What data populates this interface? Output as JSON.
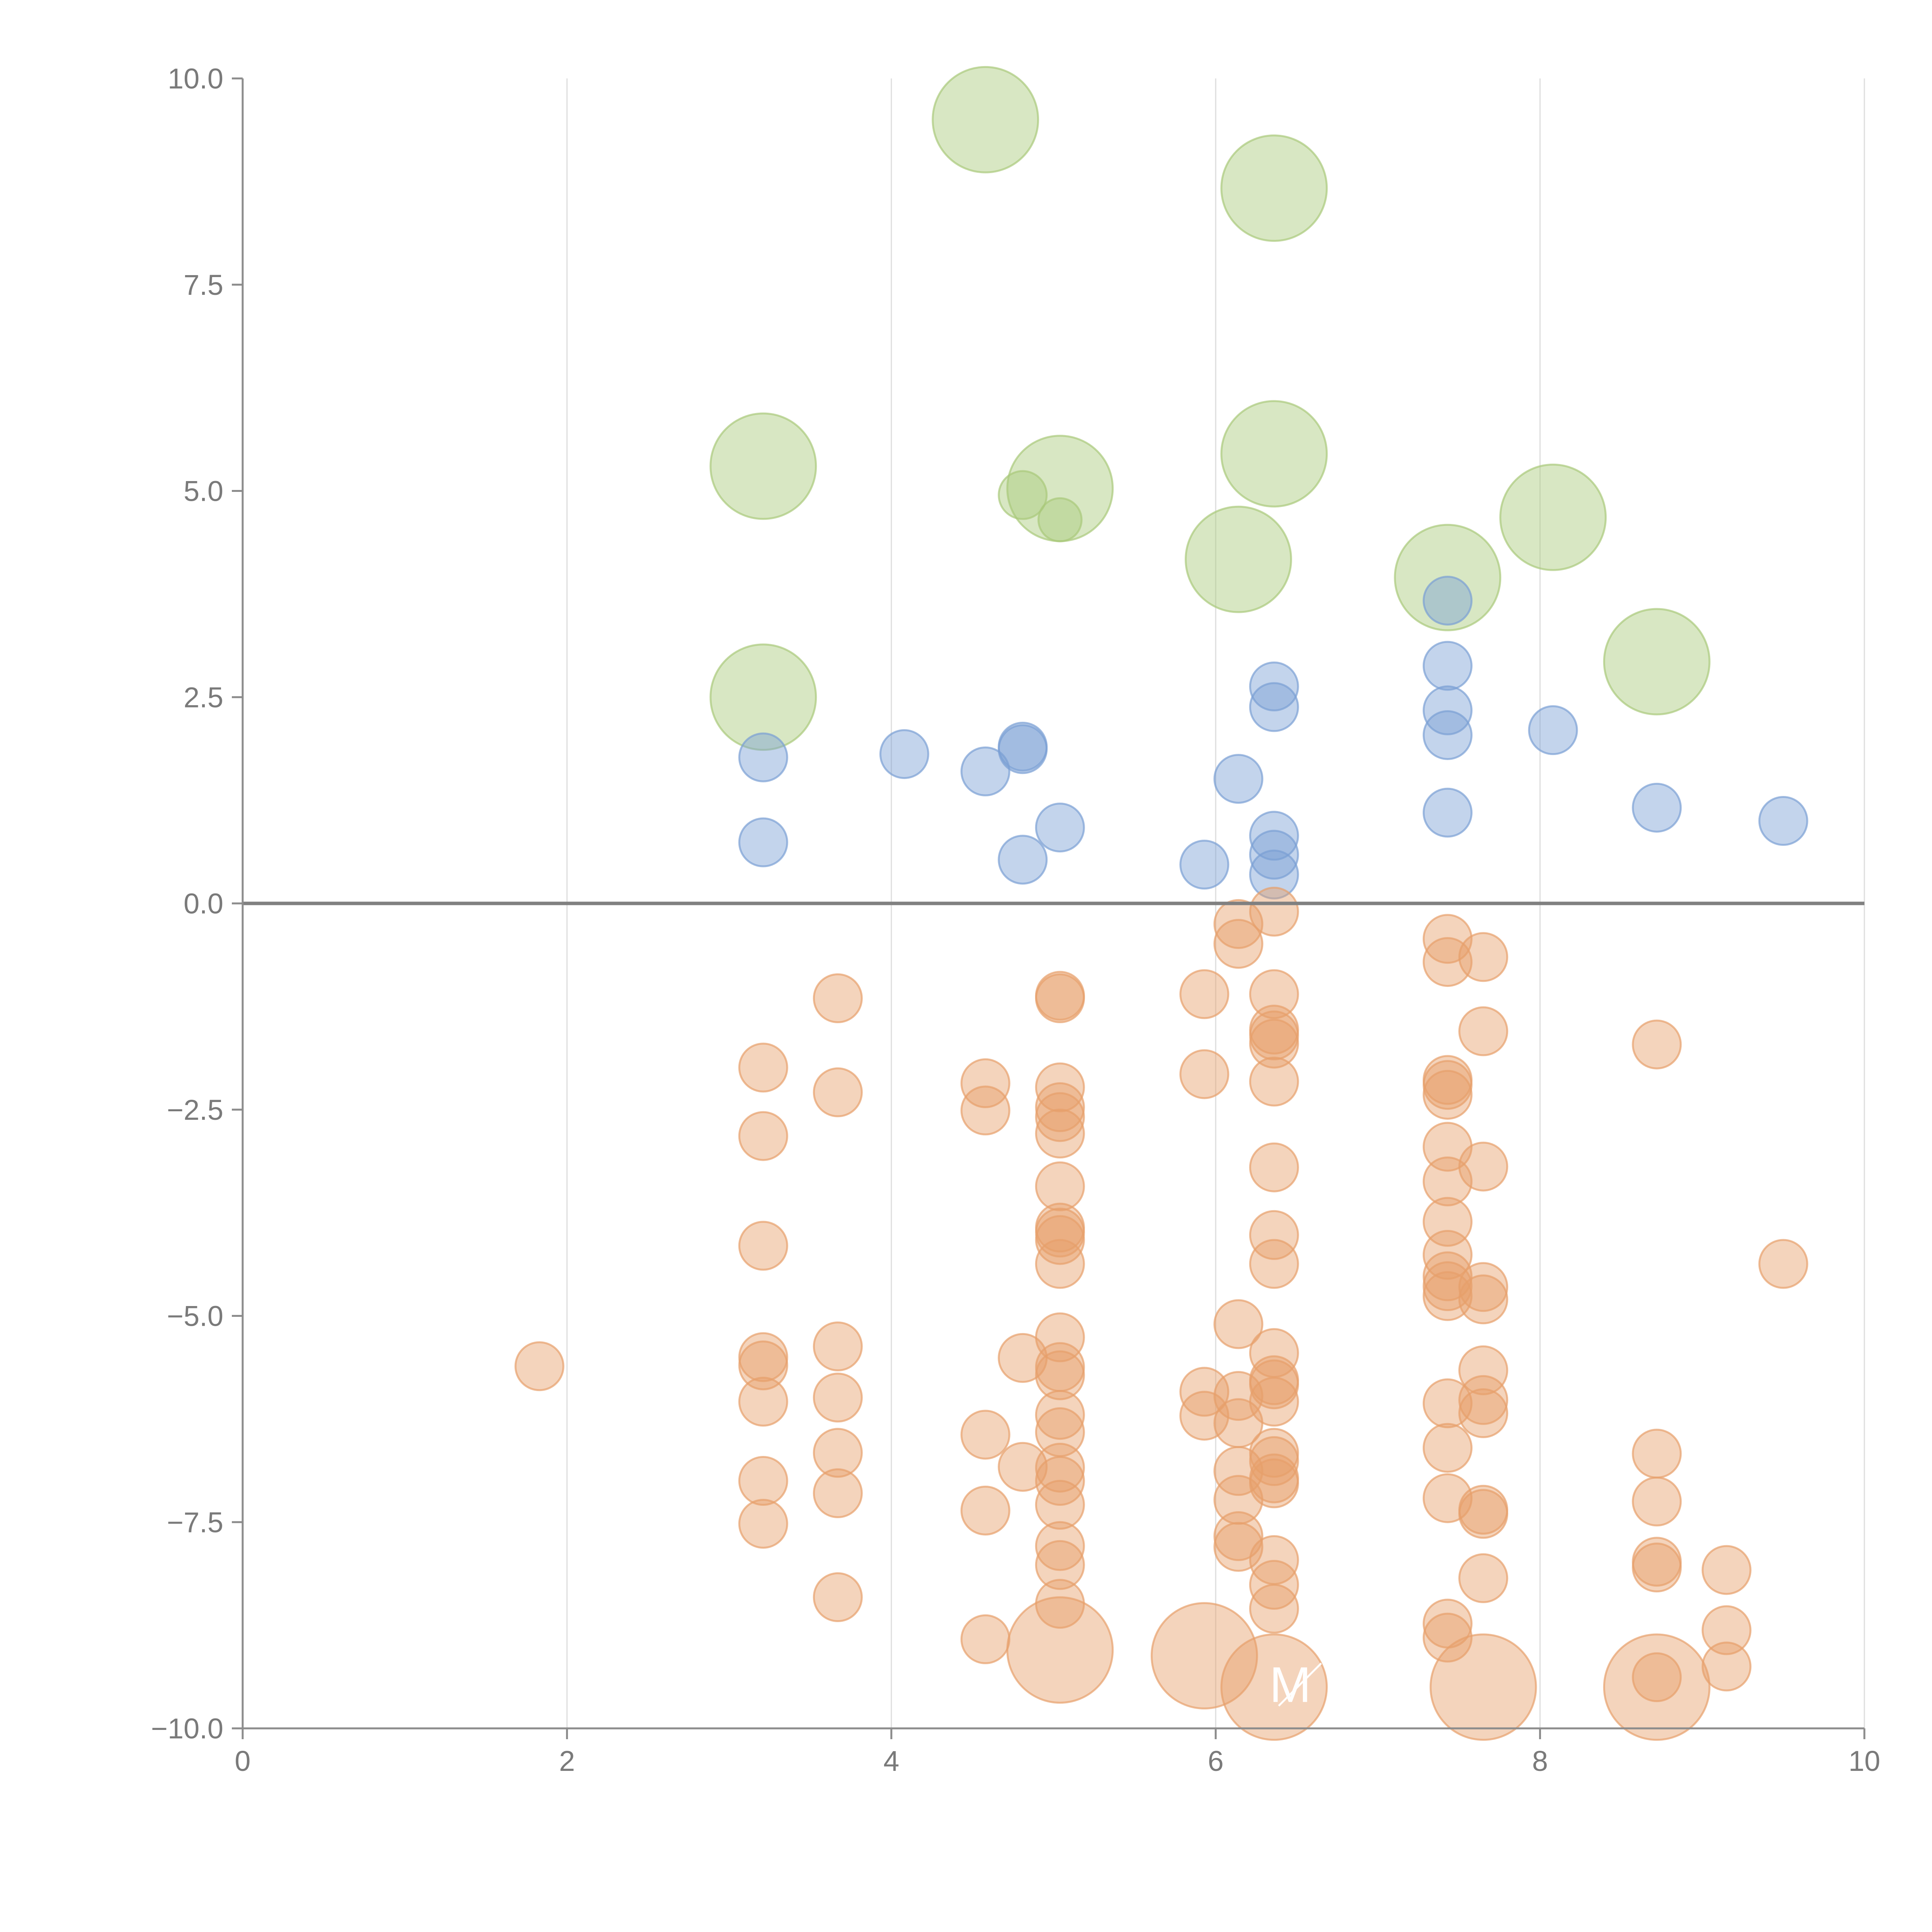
{
  "chart_data": {
    "type": "scatter",
    "title": "",
    "xlabel": "",
    "ylabel": "",
    "xlim": [
      0,
      10
    ],
    "ylim": [
      -10,
      10
    ],
    "grid": "vertical",
    "x_ticks": [
      "0",
      "2",
      "4",
      "6",
      "8",
      "10"
    ],
    "y_ticks": [
      "10.0",
      "7.5",
      "5.0",
      "2.5",
      "0.0",
      "−2.5",
      "−5.0",
      "−7.5",
      "−10.0"
    ],
    "x_tick_values": [
      0,
      2,
      4,
      6,
      8,
      10
    ],
    "y_tick_values": [
      10,
      7.5,
      5,
      2.5,
      0,
      -2.5,
      -5,
      -7.5,
      -10
    ],
    "reference_line_y": 0,
    "colors": {
      "green": "#a9c97a",
      "blue": "#7a9fd4",
      "orange": "#e7a06b"
    },
    "series": [
      {
        "color": "green",
        "points": [
          {
            "x": 4.58,
            "y": 9.5,
            "s": 2.2
          },
          {
            "x": 6.36,
            "y": 8.67,
            "s": 2.2
          },
          {
            "x": 3.21,
            "y": 5.3,
            "s": 2.2
          },
          {
            "x": 6.36,
            "y": 5.45,
            "s": 2.2
          },
          {
            "x": 5.04,
            "y": 5.03,
            "s": 2.2
          },
          {
            "x": 4.81,
            "y": 4.95,
            "s": 1.0
          },
          {
            "x": 5.04,
            "y": 4.65,
            "s": 0.9
          },
          {
            "x": 8.08,
            "y": 4.68,
            "s": 2.2
          },
          {
            "x": 6.14,
            "y": 4.17,
            "s": 2.2
          },
          {
            "x": 7.43,
            "y": 3.95,
            "s": 2.2
          },
          {
            "x": 8.72,
            "y": 2.93,
            "s": 2.2
          },
          {
            "x": 3.21,
            "y": 2.5,
            "s": 2.2
          }
        ]
      },
      {
        "color": "blue",
        "points": [
          {
            "x": 7.43,
            "y": 3.67
          },
          {
            "x": 7.43,
            "y": 2.88
          },
          {
            "x": 6.36,
            "y": 2.63
          },
          {
            "x": 6.36,
            "y": 2.38
          },
          {
            "x": 7.43,
            "y": 2.34
          },
          {
            "x": 8.08,
            "y": 2.1
          },
          {
            "x": 7.43,
            "y": 2.04
          },
          {
            "x": 4.81,
            "y": 1.9
          },
          {
            "x": 4.81,
            "y": 1.87
          },
          {
            "x": 4.08,
            "y": 1.81
          },
          {
            "x": 3.21,
            "y": 1.77
          },
          {
            "x": 4.58,
            "y": 1.6
          },
          {
            "x": 6.14,
            "y": 1.51
          },
          {
            "x": 8.72,
            "y": 1.16
          },
          {
            "x": 7.43,
            "y": 1.1
          },
          {
            "x": 9.5,
            "y": 1.0
          },
          {
            "x": 5.04,
            "y": 0.92
          },
          {
            "x": 6.36,
            "y": 0.82
          },
          {
            "x": 3.21,
            "y": 0.74
          },
          {
            "x": 6.36,
            "y": 0.59
          },
          {
            "x": 4.81,
            "y": 0.53
          },
          {
            "x": 5.93,
            "y": 0.47
          },
          {
            "x": 6.36,
            "y": 0.35
          }
        ]
      },
      {
        "color": "orange",
        "points": [
          {
            "x": 6.36,
            "y": -0.1
          },
          {
            "x": 6.14,
            "y": -0.25
          },
          {
            "x": 7.43,
            "y": -0.43
          },
          {
            "x": 6.14,
            "y": -0.49
          },
          {
            "x": 7.65,
            "y": -0.65
          },
          {
            "x": 7.43,
            "y": -0.71
          },
          {
            "x": 5.93,
            "y": -1.1
          },
          {
            "x": 6.36,
            "y": -1.1
          },
          {
            "x": 5.04,
            "y": -1.12
          },
          {
            "x": 5.04,
            "y": -1.15
          },
          {
            "x": 3.67,
            "y": -1.15
          },
          {
            "x": 6.36,
            "y": -1.53
          },
          {
            "x": 7.65,
            "y": -1.55
          },
          {
            "x": 6.36,
            "y": -1.6
          },
          {
            "x": 6.36,
            "y": -1.7
          },
          {
            "x": 8.72,
            "y": -1.71
          },
          {
            "x": 3.21,
            "y": -1.99
          },
          {
            "x": 5.93,
            "y": -2.07
          },
          {
            "x": 7.43,
            "y": -2.14
          },
          {
            "x": 6.36,
            "y": -2.16
          },
          {
            "x": 4.58,
            "y": -2.18
          },
          {
            "x": 7.43,
            "y": -2.2
          },
          {
            "x": 5.04,
            "y": -2.23
          },
          {
            "x": 3.67,
            "y": -2.29
          },
          {
            "x": 7.43,
            "y": -2.32
          },
          {
            "x": 5.04,
            "y": -2.47
          },
          {
            "x": 4.58,
            "y": -2.51
          },
          {
            "x": 5.04,
            "y": -2.59
          },
          {
            "x": 5.04,
            "y": -2.79
          },
          {
            "x": 3.21,
            "y": -2.82
          },
          {
            "x": 7.43,
            "y": -2.95
          },
          {
            "x": 6.36,
            "y": -3.2
          },
          {
            "x": 7.65,
            "y": -3.19
          },
          {
            "x": 7.43,
            "y": -3.37
          },
          {
            "x": 5.04,
            "y": -3.43
          },
          {
            "x": 7.43,
            "y": -3.86
          },
          {
            "x": 5.04,
            "y": -3.93
          },
          {
            "x": 5.04,
            "y": -3.99
          },
          {
            "x": 6.36,
            "y": -4.02
          },
          {
            "x": 5.04,
            "y": -4.08
          },
          {
            "x": 3.21,
            "y": -4.15
          },
          {
            "x": 7.43,
            "y": -4.26
          },
          {
            "x": 5.04,
            "y": -4.37
          },
          {
            "x": 6.36,
            "y": -4.37
          },
          {
            "x": 9.5,
            "y": -4.37
          },
          {
            "x": 7.43,
            "y": -4.52
          },
          {
            "x": 7.43,
            "y": -4.64
          },
          {
            "x": 7.65,
            "y": -4.65
          },
          {
            "x": 7.43,
            "y": -4.76
          },
          {
            "x": 7.65,
            "y": -4.8
          },
          {
            "x": 6.14,
            "y": -5.1
          },
          {
            "x": 5.04,
            "y": -5.26
          },
          {
            "x": 3.67,
            "y": -5.37
          },
          {
            "x": 6.36,
            "y": -5.45
          },
          {
            "x": 3.21,
            "y": -5.5
          },
          {
            "x": 4.81,
            "y": -5.51
          },
          {
            "x": 3.21,
            "y": -5.6
          },
          {
            "x": 1.83,
            "y": -5.61
          },
          {
            "x": 5.04,
            "y": -5.62
          },
          {
            "x": 7.65,
            "y": -5.66
          },
          {
            "x": 5.04,
            "y": -5.72
          },
          {
            "x": 6.36,
            "y": -5.78
          },
          {
            "x": 6.36,
            "y": -5.83
          },
          {
            "x": 5.93,
            "y": -5.92
          },
          {
            "x": 7.43,
            "y": -6.06
          },
          {
            "x": 6.14,
            "y": -5.97
          },
          {
            "x": 3.67,
            "y": -5.99
          },
          {
            "x": 7.65,
            "y": -6.02
          },
          {
            "x": 3.21,
            "y": -6.04
          },
          {
            "x": 6.36,
            "y": -6.04
          },
          {
            "x": 5.04,
            "y": -6.2
          },
          {
            "x": 7.65,
            "y": -6.18
          },
          {
            "x": 5.93,
            "y": -6.21
          },
          {
            "x": 6.14,
            "y": -6.3
          },
          {
            "x": 5.04,
            "y": -6.41
          },
          {
            "x": 4.58,
            "y": -6.44
          },
          {
            "x": 7.43,
            "y": -6.6
          },
          {
            "x": 3.67,
            "y": -6.66
          },
          {
            "x": 8.72,
            "y": -6.67
          },
          {
            "x": 6.36,
            "y": -6.66
          },
          {
            "x": 6.36,
            "y": -6.76
          },
          {
            "x": 5.04,
            "y": -6.84
          },
          {
            "x": 4.81,
            "y": -6.83
          },
          {
            "x": 6.14,
            "y": -6.88
          },
          {
            "x": 6.36,
            "y": -6.97
          },
          {
            "x": 3.21,
            "y": -7.0
          },
          {
            "x": 5.04,
            "y": -7.0
          },
          {
            "x": 6.36,
            "y": -7.03
          },
          {
            "x": 3.67,
            "y": -7.15
          },
          {
            "x": 7.43,
            "y": -7.21
          },
          {
            "x": 6.14,
            "y": -7.23
          },
          {
            "x": 8.72,
            "y": -7.25
          },
          {
            "x": 5.04,
            "y": -7.29
          },
          {
            "x": 4.58,
            "y": -7.36
          },
          {
            "x": 7.65,
            "y": -7.35
          },
          {
            "x": 7.65,
            "y": -7.4
          },
          {
            "x": 3.21,
            "y": -7.52
          },
          {
            "x": 6.14,
            "y": -7.67
          },
          {
            "x": 5.04,
            "y": -7.79
          },
          {
            "x": 6.14,
            "y": -7.8
          },
          {
            "x": 6.36,
            "y": -7.96
          },
          {
            "x": 5.04,
            "y": -8.02
          },
          {
            "x": 8.72,
            "y": -7.98
          },
          {
            "x": 8.72,
            "y": -8.05
          },
          {
            "x": 9.15,
            "y": -8.08
          },
          {
            "x": 7.65,
            "y": -8.18
          },
          {
            "x": 6.36,
            "y": -8.26
          },
          {
            "x": 3.67,
            "y": -8.41
          },
          {
            "x": 5.04,
            "y": -8.49
          },
          {
            "x": 6.36,
            "y": -8.55
          },
          {
            "x": 7.43,
            "y": -8.73
          },
          {
            "x": 9.15,
            "y": -8.81
          },
          {
            "x": 7.43,
            "y": -8.9
          },
          {
            "x": 4.58,
            "y": -8.92
          },
          {
            "x": 9.15,
            "y": -9.25
          },
          {
            "x": 8.72,
            "y": -9.38
          },
          {
            "x": 5.04,
            "y": -9.05,
            "s": 2.2
          },
          {
            "x": 5.93,
            "y": -9.12,
            "s": 2.2
          },
          {
            "x": 6.36,
            "y": -9.5,
            "s": 2.2
          },
          {
            "x": 7.65,
            "y": -9.5,
            "s": 2.2
          },
          {
            "x": 8.72,
            "y": -9.5,
            "s": 2.2
          }
        ]
      }
    ],
    "annotations": [
      {
        "text": "M",
        "x": 6.46,
        "y": -9.68
      }
    ]
  }
}
